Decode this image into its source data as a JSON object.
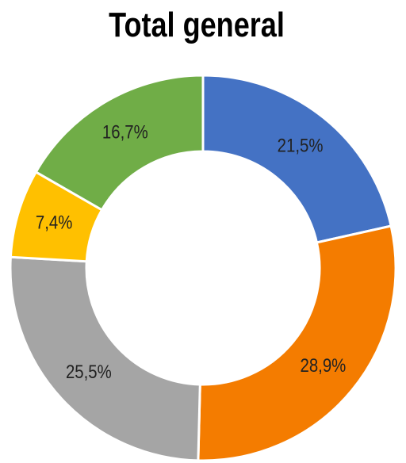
{
  "chart_data": {
    "type": "donut",
    "title": "Total general",
    "values": [
      21.5,
      28.9,
      25.5,
      7.4,
      16.7
    ],
    "value_labels": [
      "21,5%",
      "28,9%",
      "25,5%",
      "7,4%",
      "16,7%"
    ],
    "colors": [
      "#4472c4",
      "#f47c00",
      "#a5a5a5",
      "#ffc000",
      "#70ad47"
    ]
  }
}
